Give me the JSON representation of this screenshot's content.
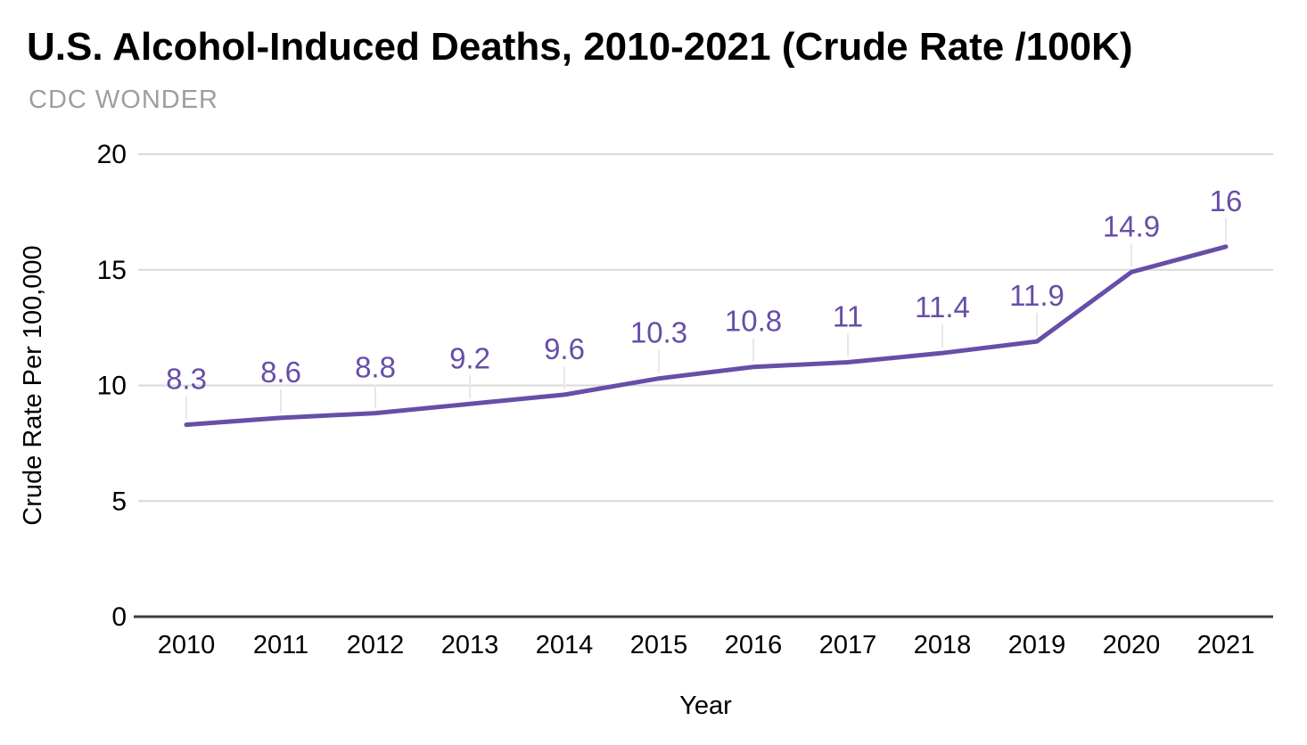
{
  "header": {
    "title": "U.S. Alcohol-Induced Deaths, 2010-2021 (Crude Rate /100K)",
    "subtitle": "CDC WONDER"
  },
  "chart_data": {
    "type": "line",
    "title": "U.S. Alcohol-Induced Deaths, 2010-2021 (Crude Rate /100K)",
    "subtitle": "CDC WONDER",
    "categories": [
      "2010",
      "2011",
      "2012",
      "2013",
      "2014",
      "2015",
      "2016",
      "2017",
      "2018",
      "2019",
      "2020",
      "2021"
    ],
    "series": [
      {
        "name": "Crude Rate Per 100,000",
        "values": [
          8.3,
          8.6,
          8.8,
          9.2,
          9.6,
          10.3,
          10.8,
          11,
          11.4,
          11.9,
          14.9,
          16
        ],
        "data_labels": [
          "8.3",
          "8.6",
          "8.8",
          "9.2",
          "9.6",
          "10.3",
          "10.8",
          "11",
          "11.4",
          "11.9",
          "14.9",
          "16"
        ]
      }
    ],
    "xlabel": "Year",
    "ylabel": "Crude Rate Per 100,000",
    "ylim": [
      0,
      20
    ],
    "yticks": [
      0,
      5,
      10,
      15,
      20
    ],
    "grid": true,
    "legend_position": "none",
    "colors": {
      "line": "#674EA7",
      "data_label": "#674EA7",
      "gridline": "#D9D9D9",
      "leader_line": "#E8E8E8",
      "axis_line": "#3c3c3c",
      "tick_label": "#000000",
      "axis_title": "#000000"
    }
  }
}
